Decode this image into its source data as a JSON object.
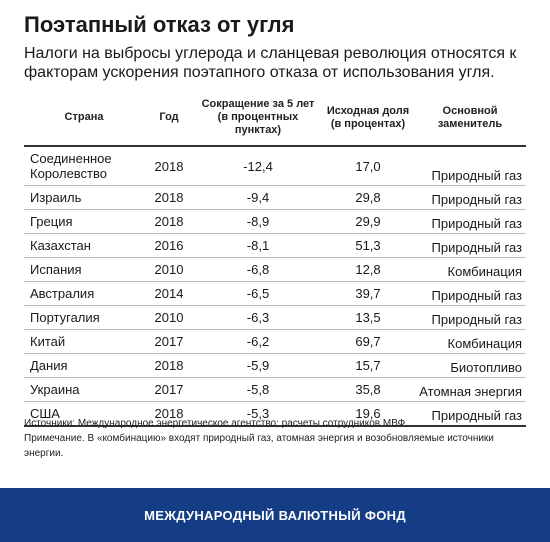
{
  "title": "Поэтапный отказ от угля",
  "subtitle": "Налоги на выбросы углерода и сланцевая революция относятся к факторам ускорения поэтапного отказа от использования угля.",
  "table": {
    "headers": {
      "country": "Страна",
      "year": "Год",
      "reduction": "Сокращение за 5 лет (в процентных пунктах)",
      "initial_share": "Исходная доля (в процентах)",
      "substitute": "Основной заменитель"
    },
    "rows": [
      {
        "country": "Соединенное Королевство",
        "year": "2018",
        "reduction": "-12,4",
        "initial_share": "17,0",
        "substitute": "Природный газ"
      },
      {
        "country": "Израиль",
        "year": "2018",
        "reduction": "-9,4",
        "initial_share": "29,8",
        "substitute": "Природный газ"
      },
      {
        "country": "Греция",
        "year": "2018",
        "reduction": "-8,9",
        "initial_share": "29,9",
        "substitute": "Природный газ"
      },
      {
        "country": "Казахстан",
        "year": "2016",
        "reduction": "-8,1",
        "initial_share": "51,3",
        "substitute": "Природный газ"
      },
      {
        "country": "Испания",
        "year": "2010",
        "reduction": "-6,8",
        "initial_share": "12,8",
        "substitute": "Комбинация"
      },
      {
        "country": "Австралия",
        "year": "2014",
        "reduction": "-6,5",
        "initial_share": "39,7",
        "substitute": "Природный газ"
      },
      {
        "country": "Португалия",
        "year": "2010",
        "reduction": "-6,3",
        "initial_share": "13,5",
        "substitute": "Природный газ"
      },
      {
        "country": "Китай",
        "year": "2017",
        "reduction": "-6,2",
        "initial_share": "69,7",
        "substitute": "Комбинация"
      },
      {
        "country": "Дания",
        "year": "2018",
        "reduction": "-5,9",
        "initial_share": "15,7",
        "substitute": "Биотопливо"
      },
      {
        "country": "Украина",
        "year": "2017",
        "reduction": "-5,8",
        "initial_share": "35,8",
        "substitute": "Атомная энергия"
      },
      {
        "country": "США",
        "year": "2018",
        "reduction": "-5,3",
        "initial_share": "19,6",
        "substitute": "Природный газ"
      }
    ]
  },
  "notes": {
    "sources": "Источники: Международное энергетическое агентство; расчеты сотрудников МВФ.",
    "note": "Примечание. В «комбинацию» входят природный газ, атомная энергия и возобновляемые источники энергии."
  },
  "footer": {
    "label": "МЕЖДУНАРОДНЫЙ ВАЛЮТНЫЙ ФОНД"
  },
  "colors": {
    "footer_bg": "#143d86",
    "text": "#1a1a1a"
  }
}
